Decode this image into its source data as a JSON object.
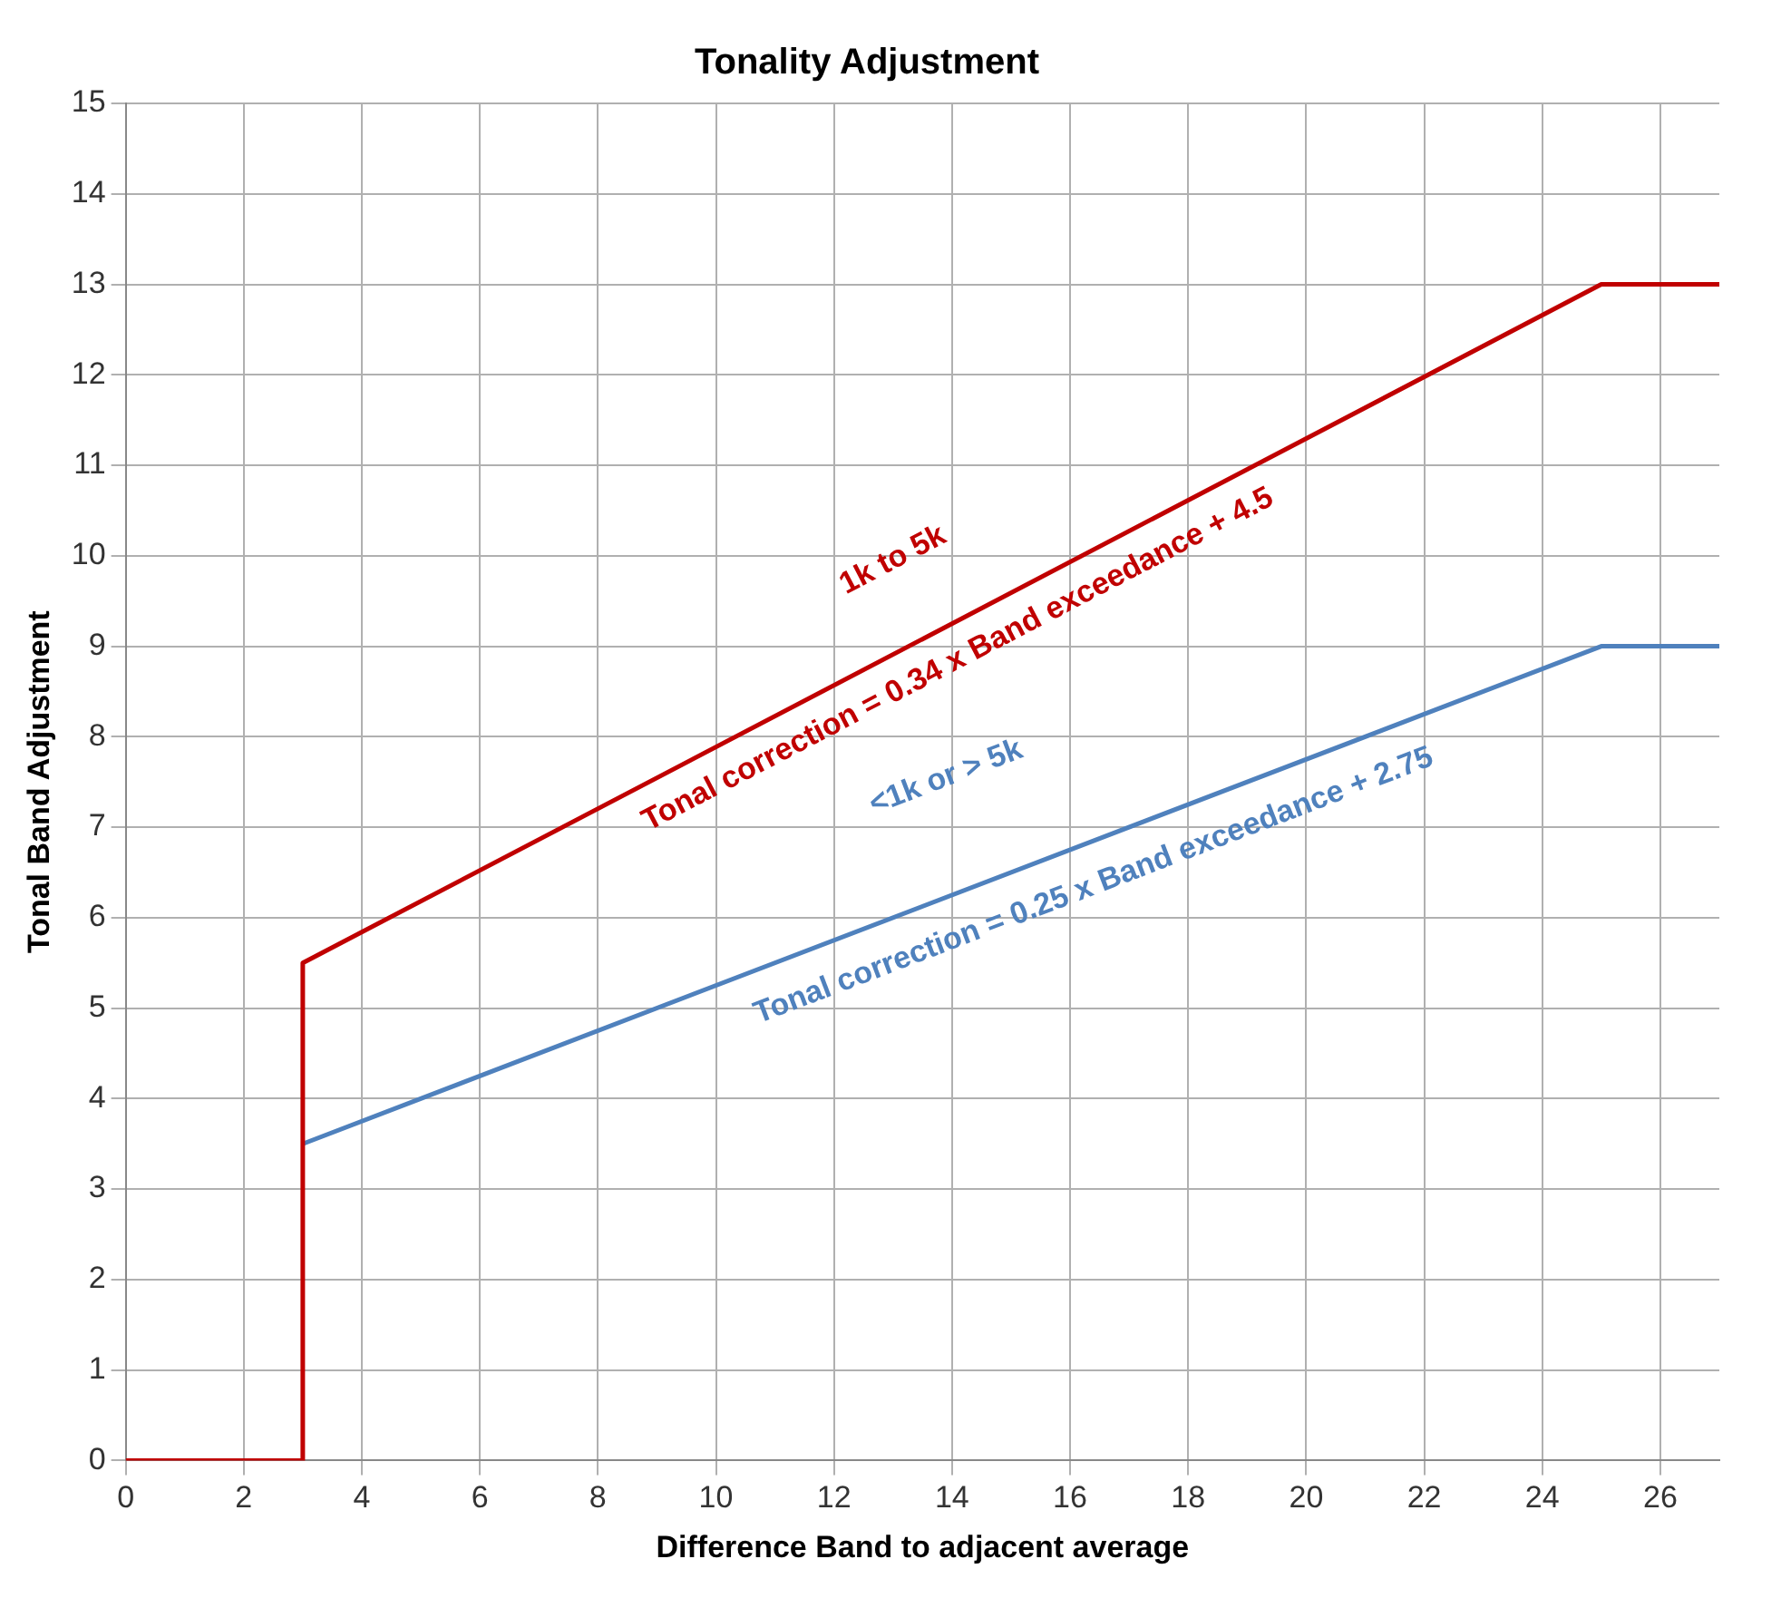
{
  "chart_data": {
    "type": "line",
    "title": "Tonality Adjustment",
    "xlabel": "Difference Band to adjacent average",
    "ylabel": "Tonal Band Adjustment",
    "series": [
      {
        "color": "#c00000",
        "x": [
          0,
          3,
          3,
          25,
          27
        ],
        "values": [
          0,
          0,
          5.5,
          13,
          13
        ]
      },
      {
        "color": "#4f81bd",
        "x": [
          3,
          25,
          27
        ],
        "values": [
          3.5,
          9,
          9
        ]
      }
    ],
    "xlim": [
      0,
      27
    ],
    "xticks": [
      0,
      2,
      4,
      6,
      8,
      10,
      12,
      14,
      16,
      18,
      20,
      22,
      24,
      26
    ],
    "ylim": [
      0,
      15
    ],
    "yticks": [
      0,
      1,
      2,
      3,
      4,
      5,
      6,
      7,
      8,
      9,
      10,
      11,
      12,
      13,
      14,
      15
    ],
    "grid": true,
    "legend": false,
    "marker": "none",
    "line_style": "solid",
    "annotations": [
      "1k to 5k",
      "Tonal correction = 0.34 x Band exceedance + 4.5",
      "<1k or > 5k",
      "Tonal correction = 0.25 x Band exceedance + 2.75"
    ]
  }
}
